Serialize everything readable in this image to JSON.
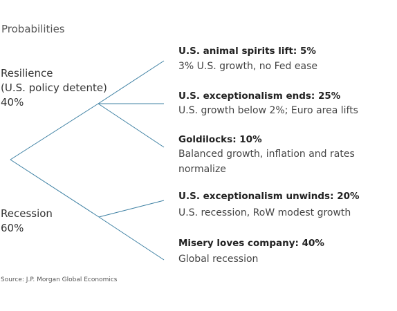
{
  "title": "Probabilities",
  "branches": [
    {
      "name_lines": [
        "Resilience",
        "(U.S. policy detente)"
      ],
      "probability": "40%",
      "outcomes": [
        {
          "title": "U.S. animal spirits lift: 5%",
          "description": "3% U.S. growth, no Fed ease"
        },
        {
          "title": "U.S. exceptionalism ends: 25%",
          "description": "U.S. growth below 2%; Euro area lifts"
        },
        {
          "title": "Goldilocks: 10%",
          "description": "Balanced growth, inflation and rates normalize"
        }
      ]
    },
    {
      "name_lines": [
        "Recession"
      ],
      "probability": "60%",
      "outcomes": [
        {
          "title": "U.S. exceptionalism unwinds: 20%",
          "description": "U.S. recession, RoW modest growth"
        },
        {
          "title": "Misery loves company: 40%",
          "description": "Global recession"
        }
      ]
    }
  ],
  "source": "Source: J.P. Morgan Global Economics"
}
